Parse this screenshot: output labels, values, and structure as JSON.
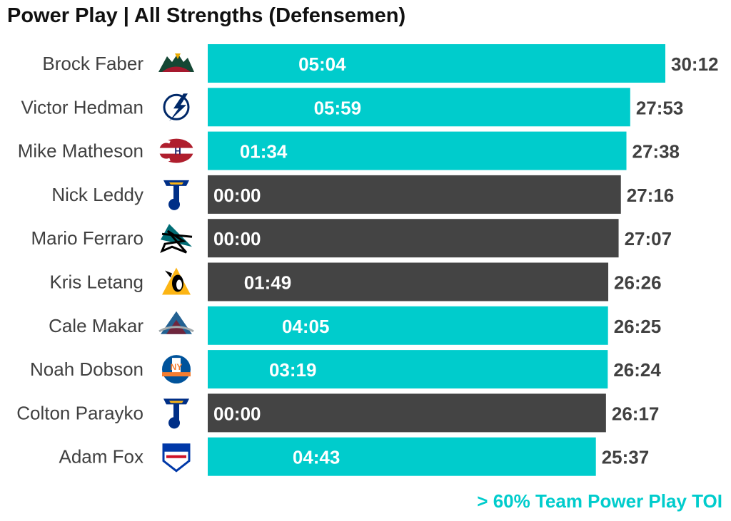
{
  "colors": {
    "highlight": "#00cccc",
    "other": "#444444",
    "name_text": "#404040",
    "total_text": "#404040",
    "bar_text": "#ffffff"
  },
  "chart_data": {
    "type": "bar",
    "orientation": "horizontal",
    "title": "Power Play | All Strengths (Defensemen)",
    "legend_text": "> 60% Team Power Play TOI",
    "legend_placement": "bottom-right",
    "grid": false,
    "xlim_minutes": [
      0,
      30.2
    ],
    "players": [
      {
        "name": "Brock Faber",
        "team_logo": "minnesota-wild-logo",
        "total": "30:12",
        "total_minutes": 30.2,
        "pp": "05:04",
        "pp_minutes": 5.067,
        "highlight": true
      },
      {
        "name": "Victor Hedman",
        "team_logo": "tampa-bay-lightning-logo",
        "total": "27:53",
        "total_minutes": 27.883,
        "pp": "05:59",
        "pp_minutes": 5.983,
        "highlight": true
      },
      {
        "name": "Mike Matheson",
        "team_logo": "montreal-canadiens-logo",
        "total": "27:38",
        "total_minutes": 27.633,
        "pp": "01:34",
        "pp_minutes": 1.567,
        "highlight": true
      },
      {
        "name": "Nick Leddy",
        "team_logo": "st-louis-blues-logo",
        "total": "27:16",
        "total_minutes": 27.267,
        "pp": "00:00",
        "pp_minutes": 0,
        "highlight": false
      },
      {
        "name": "Mario Ferraro",
        "team_logo": "san-jose-sharks-logo",
        "total": "27:07",
        "total_minutes": 27.117,
        "pp": "00:00",
        "pp_minutes": 0,
        "highlight": false
      },
      {
        "name": "Kris Letang",
        "team_logo": "pittsburgh-penguins-logo",
        "total": "26:26",
        "total_minutes": 26.433,
        "pp": "01:49",
        "pp_minutes": 1.817,
        "highlight": false
      },
      {
        "name": "Cale Makar",
        "team_logo": "colorado-avalanche-logo",
        "total": "26:25",
        "total_minutes": 26.417,
        "pp": "04:05",
        "pp_minutes": 4.083,
        "highlight": true
      },
      {
        "name": "Noah Dobson",
        "team_logo": "new-york-islanders-logo",
        "total": "26:24",
        "total_minutes": 26.4,
        "pp": "03:19",
        "pp_minutes": 3.317,
        "highlight": true
      },
      {
        "name": "Colton Parayko",
        "team_logo": "st-louis-blues-logo",
        "total": "26:17",
        "total_minutes": 26.283,
        "pp": "00:00",
        "pp_minutes": 0,
        "highlight": false
      },
      {
        "name": "Adam Fox",
        "team_logo": "new-york-rangers-logo",
        "total": "25:37",
        "total_minutes": 25.617,
        "pp": "04:43",
        "pp_minutes": 4.717,
        "highlight": true
      }
    ]
  }
}
